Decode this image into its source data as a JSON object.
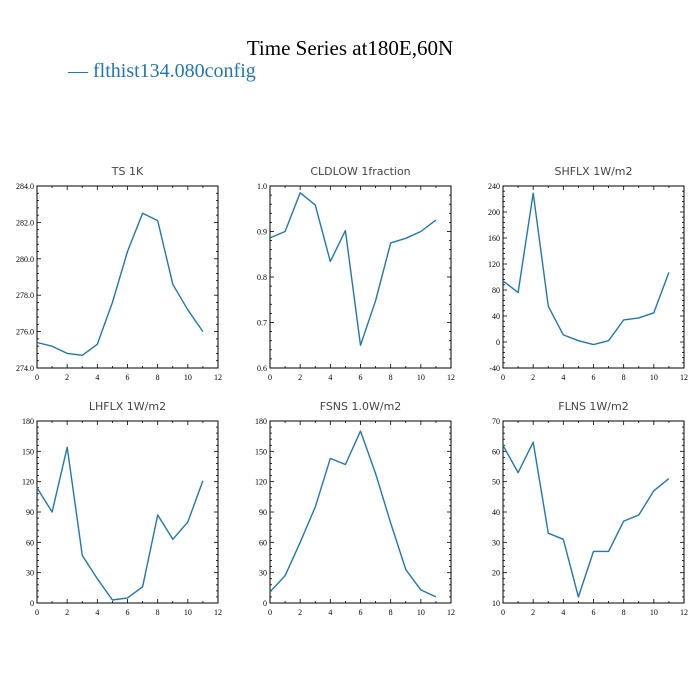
{
  "figure": {
    "title": "Time Series at180E,60N",
    "legend": {
      "label": "— flthist134.080config",
      "color": "#1f77b4"
    }
  },
  "chart_data": [
    {
      "type": "line",
      "title": "TS   1K",
      "x": [
        0,
        1,
        2,
        3,
        4,
        5,
        6,
        7,
        8,
        9,
        10,
        11
      ],
      "series": [
        {
          "values": [
            275.4,
            275.2,
            274.8,
            274.7,
            275.3,
            277.6,
            280.4,
            282.5,
            282.1,
            278.6,
            277.2,
            276.0
          ]
        }
      ],
      "xlim": [
        0,
        12
      ],
      "ylim": [
        274.0,
        284.0
      ],
      "xticks": [
        0,
        2,
        4,
        6,
        8,
        10,
        12
      ],
      "yticks": [
        274.0,
        276.0,
        278.0,
        280.0,
        282.0,
        284.0
      ],
      "ytick_labels": [
        "274.0",
        "276.0",
        "278.0",
        "280.0",
        "282.0",
        "284.0"
      ],
      "color": "#1f77b4"
    },
    {
      "type": "line",
      "title": "CLDLOW   1fraction",
      "x": [
        0,
        1,
        2,
        3,
        4,
        5,
        6,
        7,
        8,
        9,
        10,
        11
      ],
      "series": [
        {
          "values": [
            0.886,
            0.9,
            0.985,
            0.958,
            0.834,
            0.902,
            0.65,
            0.748,
            0.875,
            0.885,
            0.9,
            0.925
          ]
        }
      ],
      "xlim": [
        0,
        12
      ],
      "ylim": [
        0.6,
        1.0
      ],
      "xticks": [
        0,
        2,
        4,
        6,
        8,
        10,
        12
      ],
      "yticks": [
        0.6,
        0.7,
        0.8,
        0.9,
        1.0
      ],
      "ytick_labels": [
        "0.6",
        "0.7",
        "0.8",
        "0.9",
        "1.0"
      ],
      "color": "#1f77b4"
    },
    {
      "type": "line",
      "title": "SHFLX   1W/m2",
      "x": [
        0,
        1,
        2,
        3,
        4,
        5,
        6,
        7,
        8,
        9,
        10,
        11
      ],
      "series": [
        {
          "values": [
            94,
            76,
            229,
            55,
            11,
            2,
            -4,
            2,
            34,
            37,
            45,
            107
          ]
        }
      ],
      "xlim": [
        0,
        12
      ],
      "ylim": [
        -40,
        240
      ],
      "xticks": [
        0,
        2,
        4,
        6,
        8,
        10,
        12
      ],
      "yticks": [
        -40,
        0,
        40,
        80,
        120,
        160,
        200,
        240
      ],
      "ytick_labels": [
        "-40",
        "0",
        "40",
        "80",
        "120",
        "160",
        "200",
        "240"
      ],
      "color": "#1f77b4"
    },
    {
      "type": "line",
      "title": "LHFLX   1W/m2",
      "x": [
        0,
        1,
        2,
        3,
        4,
        5,
        6,
        7,
        8,
        9,
        10,
        11
      ],
      "series": [
        {
          "values": [
            114,
            90,
            154,
            47,
            24,
            3,
            5,
            16,
            87,
            63,
            80,
            121
          ]
        }
      ],
      "xlim": [
        0,
        12
      ],
      "ylim": [
        0,
        180
      ],
      "xticks": [
        0,
        2,
        4,
        6,
        8,
        10,
        12
      ],
      "yticks": [
        0,
        30,
        60,
        90,
        120,
        150,
        180
      ],
      "ytick_labels": [
        "0",
        "30",
        "60",
        "90",
        "120",
        "150",
        "180"
      ],
      "color": "#1f77b4"
    },
    {
      "type": "line",
      "title": "FSNS   1.0W/m2",
      "x": [
        0,
        1,
        2,
        3,
        4,
        5,
        6,
        7,
        8,
        9,
        10,
        11
      ],
      "series": [
        {
          "values": [
            11,
            27,
            60,
            95,
            143,
            137,
            170,
            128,
            79,
            33,
            13,
            6
          ]
        }
      ],
      "xlim": [
        0,
        12
      ],
      "ylim": [
        0,
        180
      ],
      "xticks": [
        0,
        2,
        4,
        6,
        8,
        10,
        12
      ],
      "yticks": [
        0,
        30,
        60,
        90,
        120,
        150,
        180
      ],
      "ytick_labels": [
        "0",
        "30",
        "60",
        "90",
        "120",
        "150",
        "180"
      ],
      "color": "#1f77b4"
    },
    {
      "type": "line",
      "title": "FLNS   1W/m2",
      "x": [
        0,
        1,
        2,
        3,
        4,
        5,
        6,
        7,
        8,
        9,
        10,
        11
      ],
      "series": [
        {
          "values": [
            62,
            53,
            63,
            33,
            31,
            12,
            27,
            27,
            37,
            39,
            47,
            51
          ]
        }
      ],
      "xlim": [
        0,
        12
      ],
      "ylim": [
        10,
        70
      ],
      "xticks": [
        0,
        2,
        4,
        6,
        8,
        10,
        12
      ],
      "yticks": [
        10,
        20,
        30,
        40,
        50,
        60,
        70
      ],
      "ytick_labels": [
        "10",
        "20",
        "30",
        "40",
        "50",
        "60",
        "70"
      ],
      "color": "#1f77b4"
    }
  ]
}
